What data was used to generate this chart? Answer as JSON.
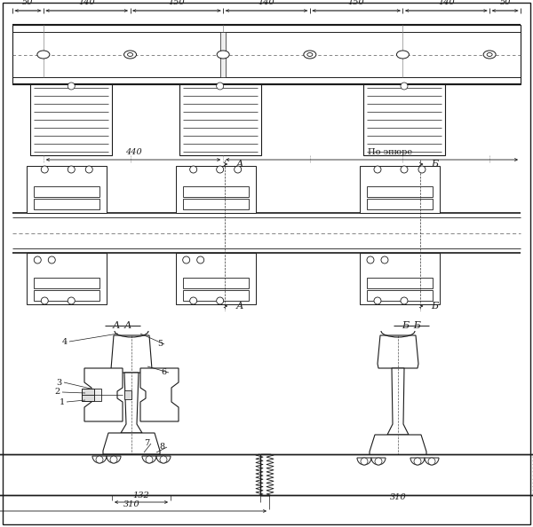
{
  "bg_color": "#ffffff",
  "line_color": "#1a1a1a",
  "dim_labels_top": [
    "50",
    "140",
    "150",
    "140",
    "150",
    "140",
    "50"
  ],
  "mm_positions": [
    0,
    50,
    190,
    340,
    480,
    630,
    770,
    820
  ],
  "label_440": "440",
  "label_po_elyure": "По эпюре",
  "label_AA": "А–А",
  "label_BB": "Б–Б",
  "label_A": "А",
  "label_B": "Б",
  "label_132": "132",
  "label_310": "310",
  "numbers": [
    "1",
    "2",
    "3",
    "4",
    "5",
    "6",
    "7",
    "8"
  ]
}
